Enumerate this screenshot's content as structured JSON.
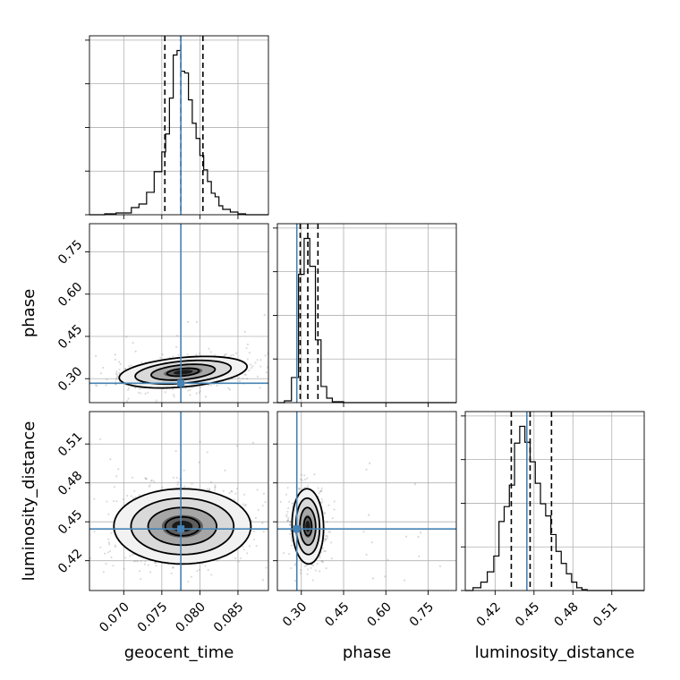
{
  "chart_data": {
    "type": "corner",
    "parameters": [
      "geocent_time",
      "phase",
      "luminosity_distance"
    ],
    "ranges": {
      "geocent_time": [
        0.0655,
        0.089
      ],
      "phase": [
        0.215,
        0.85
      ],
      "luminosity_distance": [
        0.397,
        0.535
      ]
    },
    "ticks": {
      "geocent_time": [
        0.07,
        0.075,
        0.08,
        0.085
      ],
      "phase": [
        0.3,
        0.45,
        0.6,
        0.75
      ],
      "luminosity_distance": [
        0.42,
        0.45,
        0.48,
        0.51
      ]
    },
    "tick_labels": {
      "geocent_time": [
        "0.070",
        "0.075",
        "0.080",
        "0.085"
      ],
      "phase": [
        "0.30",
        "0.45",
        "0.60",
        "0.75"
      ],
      "luminosity_distance": [
        "0.42",
        "0.45",
        "0.48",
        "0.51"
      ]
    },
    "truths": {
      "geocent_time": 0.0775,
      "phase": 0.284,
      "luminosity_distance": 0.4445
    },
    "quantiles": {
      "geocent_time": [
        0.0754,
        0.0775,
        0.0804
      ],
      "phase": [
        0.296,
        0.323,
        0.359
      ],
      "luminosity_distance": [
        0.4325,
        0.447,
        0.4635
      ]
    },
    "marginals": {
      "geocent_time": {
        "bin_edges": [
          0.0655,
          0.0675,
          0.069,
          0.071,
          0.072,
          0.073,
          0.074,
          0.075,
          0.0755,
          0.076,
          0.0765,
          0.077,
          0.0775,
          0.078,
          0.0785,
          0.079,
          0.0795,
          0.08,
          0.0805,
          0.081,
          0.0815,
          0.082,
          0.0825,
          0.083,
          0.084,
          0.085,
          0.086,
          0.089
        ],
        "counts": [
          0,
          1,
          2,
          8,
          12,
          25,
          48,
          70,
          90,
          130,
          178,
          183,
          160,
          158,
          128,
          102,
          85,
          66,
          50,
          37,
          24,
          20,
          10,
          6,
          3,
          1,
          0
        ]
      },
      "phase": {
        "bin_edges": [
          0.215,
          0.24,
          0.265,
          0.29,
          0.31,
          0.33,
          0.35,
          0.37,
          0.39,
          0.41,
          0.45,
          0.52,
          0.85
        ],
        "counts": [
          0,
          2,
          28,
          143,
          183,
          152,
          70,
          18,
          5,
          1,
          0,
          0
        ]
      },
      "luminosity_distance": {
        "bin_edges": [
          0.397,
          0.403,
          0.409,
          0.414,
          0.419,
          0.423,
          0.427,
          0.431,
          0.435,
          0.439,
          0.443,
          0.447,
          0.451,
          0.455,
          0.459,
          0.463,
          0.467,
          0.471,
          0.475,
          0.479,
          0.483,
          0.487,
          0.491,
          0.495,
          0.535
        ],
        "counts": [
          0,
          3,
          9,
          20,
          37,
          74,
          90,
          113,
          158,
          176,
          159,
          138,
          115,
          93,
          80,
          60,
          42,
          29,
          18,
          9,
          3,
          1,
          0,
          0
        ]
      }
    },
    "pairs": [
      {
        "x": "geocent_time",
        "y": "phase",
        "center": [
          0.0778,
          0.323
        ],
        "spread": [
          0.0042,
          0.028
        ],
        "correlation": 0.35,
        "contour_levels": [
          0.5,
          1.0,
          1.5,
          2.0
        ]
      },
      {
        "x": "geocent_time",
        "y": "luminosity_distance",
        "center": [
          0.0777,
          0.4465
        ],
        "spread": [
          0.0045,
          0.0145
        ],
        "correlation": 0.0,
        "contour_levels": [
          0.5,
          1.0,
          1.5,
          2.0
        ]
      },
      {
        "x": "phase",
        "y": "luminosity_distance",
        "center": [
          0.323,
          0.4465
        ],
        "spread": [
          0.028,
          0.0145
        ],
        "correlation": -0.05,
        "contour_levels": [
          0.5,
          1.0,
          1.5,
          2.0
        ]
      }
    ],
    "colors": {
      "truth": "#4682b4",
      "ink": "#000000",
      "grid": "#b0b0b0",
      "samples": "#808080"
    },
    "grid": true
  }
}
